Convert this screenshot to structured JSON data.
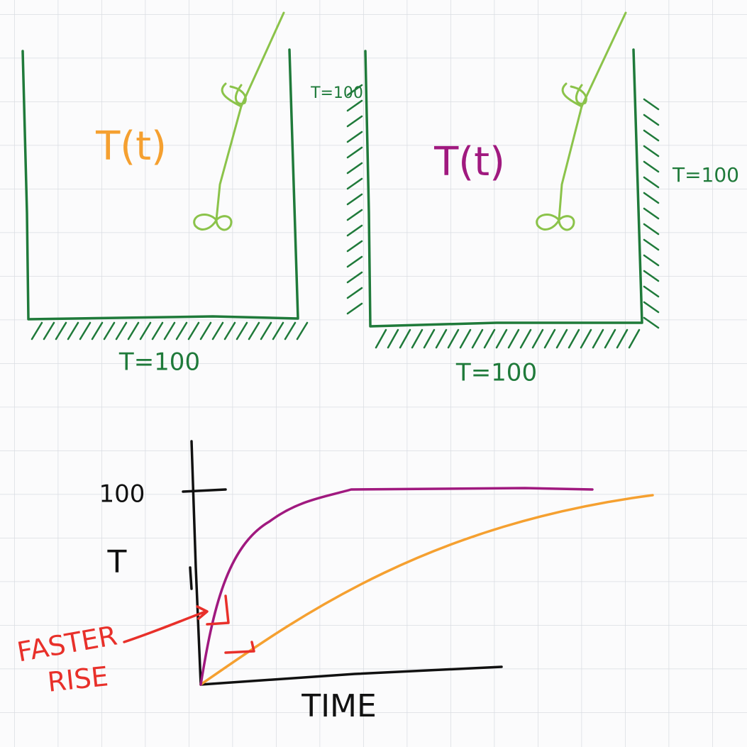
{
  "tanks": [
    {
      "label": "T(t)",
      "bottom": "T=100"
    },
    {
      "label": "T(t)",
      "left": "T=100",
      "right": "T=100",
      "bottom": "T=100"
    }
  ],
  "graph": {
    "y_tick": "100",
    "y_label": "T",
    "x_label": "TIME",
    "annotation": [
      "FASTER",
      "RISE"
    ]
  }
}
